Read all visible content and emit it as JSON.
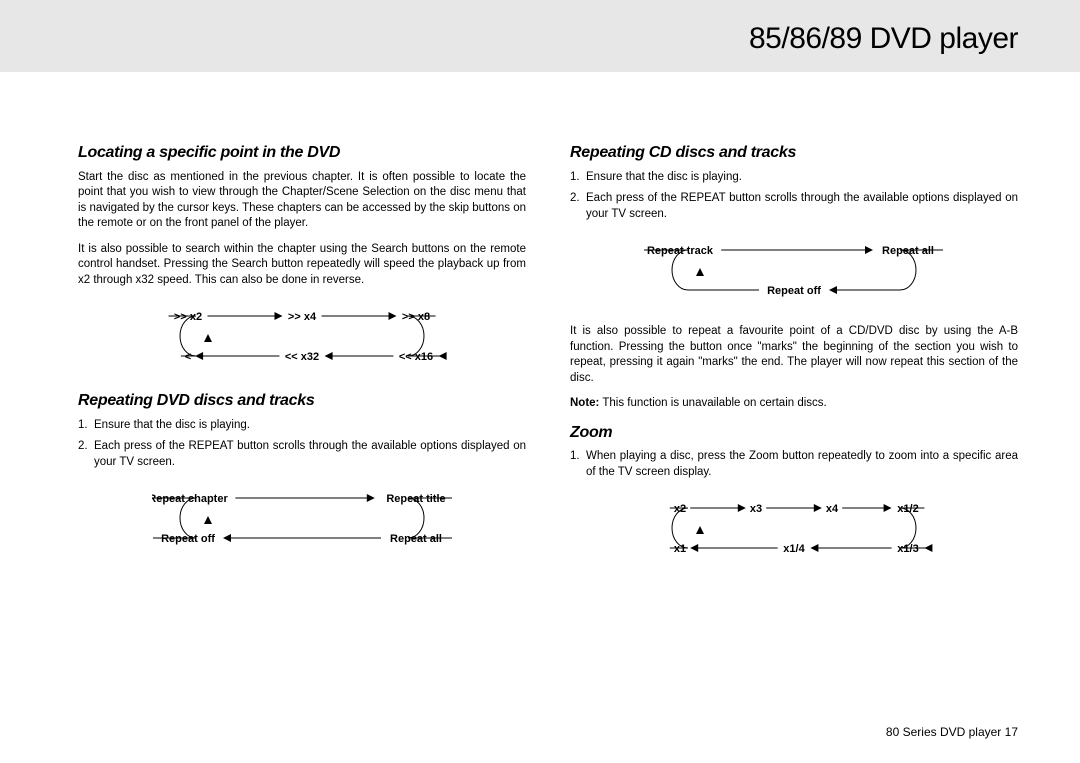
{
  "header": {
    "title": "85/86/89 DVD player"
  },
  "left": {
    "s1_heading": "Locating a specific point in the DVD",
    "s1_p1": "Start the disc as mentioned in the previous chapter. It is often possible to locate the point that you wish to view through the Chapter/Scene Selection on the disc menu that is navigated by the cursor keys. These chapters can be accessed by the skip buttons on the remote or on the front panel of the player.",
    "s1_p2": "It is also possible to search within the chapter using the Search buttons on the remote control handset. Pressing the Search button repeatedly will speed the playback up from x2 through x32 speed. This can also be done in reverse.",
    "cycle1": {
      "top": [
        ">> x2",
        ">> x4",
        ">> x8"
      ],
      "bottom": [
        "<",
        "<< x32",
        "<< x16"
      ]
    },
    "s2_heading": "Repeating DVD discs and tracks",
    "s2_li1": "Ensure that the disc is playing.",
    "s2_li2": "Each press of the REPEAT button scrolls through the available options displayed on your TV screen.",
    "cycle2": {
      "top": [
        "Repeat chapter",
        "Repeat title"
      ],
      "bottom": [
        "Repeat off",
        "Repeat all"
      ]
    }
  },
  "right": {
    "s3_heading": "Repeating CD discs and tracks",
    "s3_li1": "Ensure that the disc is playing.",
    "s3_li2": "Each press of the REPEAT button scrolls through the available options displayed on your TV screen.",
    "cycle3": {
      "top": [
        "Repeat track",
        "Repeat all"
      ],
      "bottom": [
        "Repeat off"
      ]
    },
    "s3_p1": "It is also possible to repeat a favourite point of a CD/DVD disc by using the A-B function. Pressing the button once \"marks\" the beginning of the section you wish to repeat, pressing it again \"marks\" the end. The player will now repeat this section of the disc.",
    "s3_note_label": "Note:",
    "s3_note_text": " This function is unavailable on certain discs.",
    "s4_heading": "Zoom",
    "s4_li1": "When playing a disc, press the Zoom button repeatedly to zoom into a specific area of the TV screen display.",
    "cycle4": {
      "top": [
        "x2",
        "x3",
        "x4",
        "x1/2"
      ],
      "bottom": [
        "x1",
        "x1/4",
        "x1/3"
      ]
    }
  },
  "footer": {
    "text": "80 Series DVD player  17"
  },
  "style": {
    "diagram_width": 300,
    "diagram_height": 72,
    "arc_stroke": "#000000",
    "arrow_fill": "#000000",
    "label_color": "#000000"
  }
}
